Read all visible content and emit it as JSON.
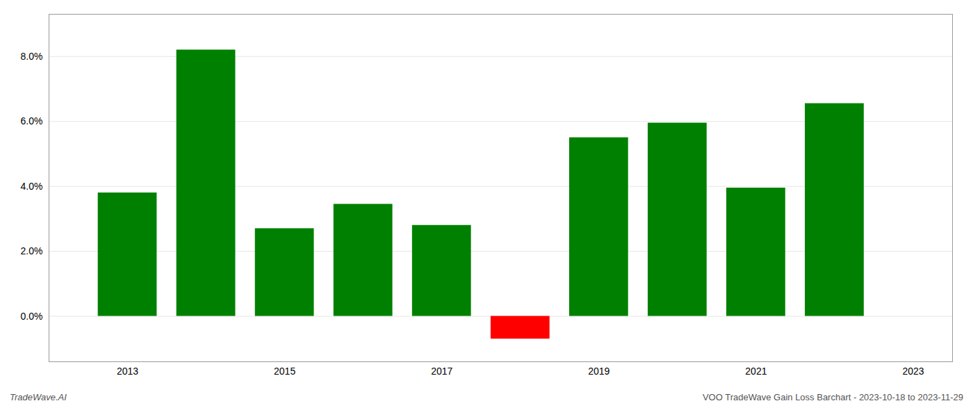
{
  "chart_data": {
    "type": "bar",
    "x": [
      2013,
      2014,
      2015,
      2016,
      2017,
      2018,
      2019,
      2020,
      2021,
      2022
    ],
    "values": [
      0.038,
      0.082,
      0.027,
      0.0345,
      0.028,
      -0.007,
      0.055,
      0.0595,
      0.0395,
      0.0655
    ],
    "colors": [
      "#008000",
      "#008000",
      "#008000",
      "#008000",
      "#008000",
      "#ff0000",
      "#008000",
      "#008000",
      "#008000",
      "#008000"
    ],
    "xlim": [
      2012.0,
      2023.5
    ],
    "xticks": [
      2013,
      2015,
      2017,
      2019,
      2021,
      2023
    ],
    "ylim": [
      -0.014,
      0.093
    ],
    "yticks": [
      {
        "value": 0.0,
        "label": "0.0%"
      },
      {
        "value": 0.02,
        "label": "2.0%"
      },
      {
        "value": 0.04,
        "label": "4.0%"
      },
      {
        "value": 0.06,
        "label": "6.0%"
      },
      {
        "value": 0.08,
        "label": "8.0%"
      }
    ],
    "grid": true,
    "annotations": [
      "TradeWave.AI",
      "VOO TradeWave Gain Loss Barchart - 2023-10-18 to 2023-11-29"
    ]
  }
}
